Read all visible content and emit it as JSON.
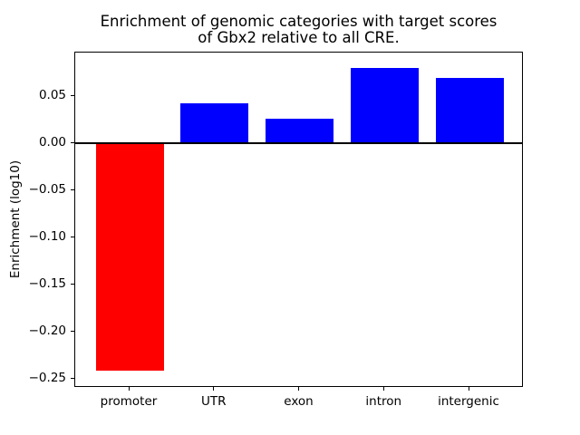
{
  "chart_data": {
    "type": "bar",
    "title": "Enrichment of genomic categories with target scores\nof Gbx2 relative to all CRE.",
    "xlabel": "",
    "ylabel": "Enrichment (log10)",
    "categories": [
      "promoter",
      "UTR",
      "exon",
      "intron",
      "intergenic"
    ],
    "values": [
      -0.241,
      0.042,
      0.026,
      0.08,
      0.069
    ],
    "bar_colors": [
      "#ff0000",
      "#0000ff",
      "#0000ff",
      "#0000ff",
      "#0000ff"
    ],
    "bar_width_fraction": 0.8,
    "ylim": [
      -0.2596,
      0.0962
    ],
    "xlim": [
      -0.64,
      4.64
    ],
    "yticks": {
      "values": [
        0.05,
        0.0,
        -0.05,
        -0.1,
        -0.15,
        -0.2,
        -0.25
      ],
      "labels": [
        "0.05",
        "0.00",
        "−0.05",
        "−0.10",
        "−0.15",
        "−0.20",
        "−0.25"
      ]
    },
    "zero_line": true,
    "grid": false,
    "legend": null,
    "colors": {
      "negative_bar": "#ff0000",
      "positive_bar": "#0000ff",
      "axes": "#000000",
      "background": "#ffffff"
    }
  }
}
